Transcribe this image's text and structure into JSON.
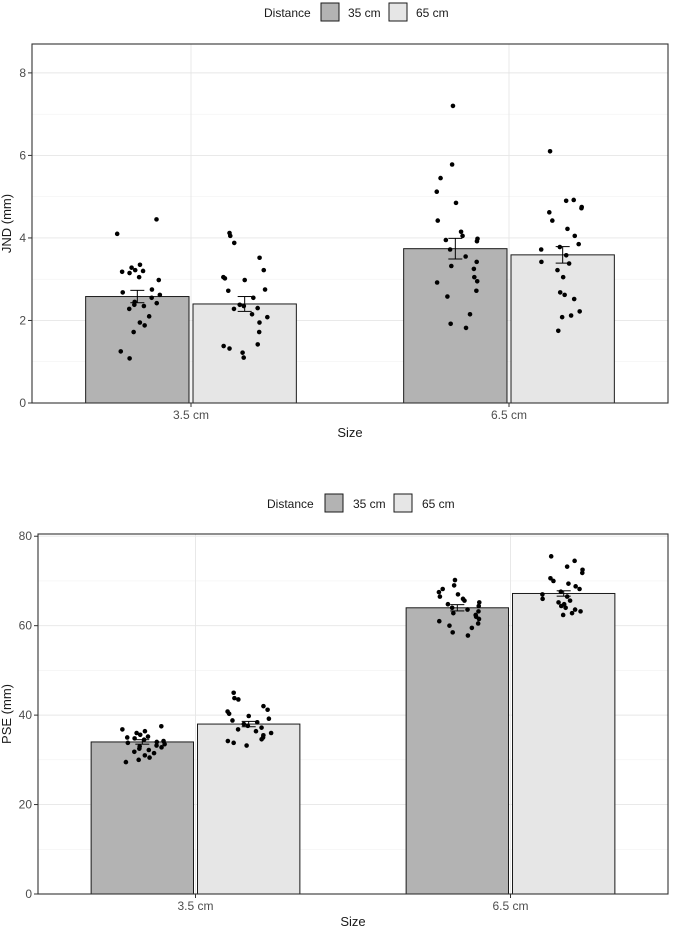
{
  "colors": {
    "d35": "#b3b3b3",
    "d65": "#e6e6e6"
  },
  "chart_data": [
    {
      "type": "bar",
      "title": "",
      "xlabel": "Size",
      "ylabel": "JND (mm)",
      "ylim": [
        0,
        8.7
      ],
      "yticks": [
        0,
        2,
        4,
        6,
        8
      ],
      "categories": [
        "3.5 cm",
        "6.5 cm"
      ],
      "legend": {
        "title": "Distance",
        "position": "top",
        "entries": [
          "35 cm",
          "65 cm"
        ]
      },
      "series": [
        {
          "name": "35 cm",
          "values": [
            2.58,
            3.74
          ],
          "se": [
            0.15,
            0.25
          ],
          "points": [
            [
              4.45,
              4.1,
              3.35,
              3.28,
              3.22,
              3.2,
              3.18,
              3.15,
              3.05,
              2.98,
              2.75,
              2.68,
              2.62,
              2.55,
              2.45,
              2.42,
              2.38,
              2.35,
              2.28,
              2.1,
              1.95,
              1.88,
              1.72,
              1.25,
              1.08
            ],
            [
              7.2,
              5.78,
              5.45,
              5.12,
              4.85,
              4.42,
              4.15,
              4.05,
              3.98,
              3.95,
              3.92,
              3.72,
              3.55,
              3.42,
              3.32,
              3.25,
              3.05,
              2.95,
              2.92,
              2.72,
              2.58,
              2.15,
              1.92,
              1.82
            ]
          ]
        },
        {
          "name": "65 cm",
          "values": [
            2.4,
            3.59
          ],
          "se": [
            0.18,
            0.2
          ],
          "points": [
            [
              4.12,
              4.05,
              3.88,
              3.52,
              3.22,
              3.05,
              3.02,
              2.98,
              2.75,
              2.72,
              2.55,
              2.38,
              2.35,
              2.3,
              2.28,
              2.15,
              2.08,
              1.95,
              1.72,
              1.42,
              1.38,
              1.32,
              1.22,
              1.1
            ],
            [
              6.1,
              4.92,
              4.9,
              4.75,
              4.72,
              4.62,
              4.42,
              4.22,
              4.05,
              3.85,
              3.78,
              3.72,
              3.58,
              3.42,
              3.38,
              3.22,
              3.05,
              2.68,
              2.62,
              2.52,
              2.22,
              2.12,
              2.08,
              1.75
            ]
          ]
        }
      ]
    },
    {
      "type": "bar",
      "title": "",
      "xlabel": "Size",
      "ylabel": "PSE (mm)",
      "ylim": [
        0,
        80.5
      ],
      "yticks": [
        0,
        20,
        40,
        60,
        80
      ],
      "categories": [
        "3.5 cm",
        "6.5 cm"
      ],
      "legend": {
        "title": "Distance",
        "position": "top",
        "entries": [
          "35 cm",
          "65 cm"
        ]
      },
      "series": [
        {
          "name": "35 cm",
          "values": [
            34.0,
            64.0
          ],
          "se": [
            0.5,
            0.7
          ],
          "points": [
            [
              37.5,
              36.8,
              36.4,
              36.0,
              35.6,
              35.2,
              35.0,
              34.8,
              34.5,
              34.2,
              34.0,
              33.8,
              33.5,
              33.2,
              33.0,
              32.8,
              32.5,
              32.2,
              31.8,
              31.5,
              31.0,
              30.5,
              30.0,
              29.5
            ],
            [
              70.2,
              69.0,
              68.2,
              67.5,
              67.0,
              66.5,
              66.0,
              65.6,
              65.2,
              64.8,
              64.4,
              64.0,
              63.6,
              63.2,
              62.8,
              62.4,
              62.0,
              61.5,
              61.0,
              60.5,
              60.0,
              59.5,
              58.5,
              57.8
            ]
          ]
        },
        {
          "name": "65 cm",
          "values": [
            38.0,
            67.2
          ],
          "se": [
            0.6,
            0.6
          ],
          "points": [
            [
              45.0,
              43.8,
              43.5,
              42.0,
              41.2,
              40.8,
              40.3,
              39.8,
              39.2,
              38.8,
              38.4,
              38.0,
              37.6,
              37.2,
              36.8,
              36.4,
              36.0,
              35.5,
              35.0,
              34.6,
              34.2,
              33.8,
              33.2
            ],
            [
              75.5,
              74.5,
              73.2,
              72.5,
              71.8,
              70.6,
              70.0,
              69.4,
              68.8,
              68.2,
              67.6,
              67.0,
              66.5,
              66.0,
              65.6,
              65.2,
              64.8,
              64.4,
              64.0,
              63.6,
              63.2,
              62.8,
              62.4
            ]
          ]
        }
      ]
    }
  ]
}
